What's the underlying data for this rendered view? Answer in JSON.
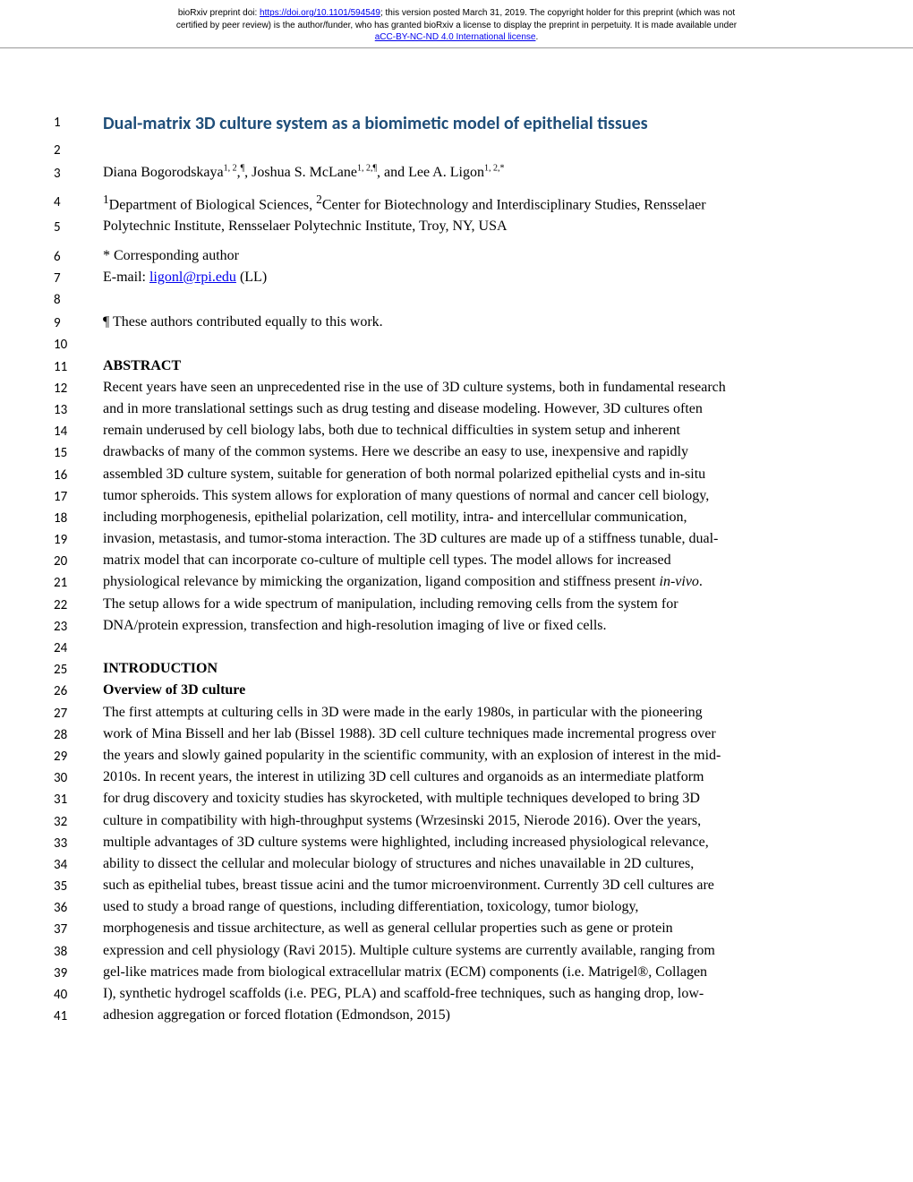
{
  "header": {
    "line1_a": "bioRxiv preprint doi: ",
    "line1_doi": "https://doi.org/10.1101/594549",
    "line1_b": "; this version posted March 31, 2019. The copyright holder for this preprint (which was not",
    "line2": "certified by peer review) is the author/funder, who has granted bioRxiv a license to display the preprint in perpetuity. It is made available under",
    "line3_license": "aCC-BY-NC-ND 4.0 International license",
    "line3_b": "."
  },
  "lines": {
    "1": {
      "cls": "title-text",
      "text": "Dual-matrix 3D culture system as a biomimetic model of epithelial tissues"
    },
    "2": {
      "cls": "blank",
      "text": ""
    },
    "3": {
      "cls": "authors",
      "html": "Diana Bogorodskaya<sup>1, 2</sup>,<sup>¶</sup>, Joshua S. McLane<sup>1, 2,¶</sup>, and Lee A. Ligon<sup>1, 2,*</sup>"
    },
    "4": {
      "html": "<sup>1</sup>Department of Biological Sciences, <sup>2</sup>Center for Biotechnology and Interdisciplinary Studies, Rensselaer"
    },
    "5": {
      "text": "Polytechnic Institute, Rensselaer Polytechnic Institute, Troy, NY, USA",
      "tight": true
    },
    "6": {
      "text": "* Corresponding author",
      "tight": true
    },
    "7": {
      "html": "E-mail: <a class=\"email-link\" href=\"#\">ligonl@rpi.edu</a> (LL)",
      "tight": true
    },
    "8": {
      "cls": "blank",
      "text": ""
    },
    "9": {
      "text": "¶ These authors contributed equally to this work.",
      "tight": true
    },
    "10": {
      "cls": "blank",
      "text": ""
    },
    "11": {
      "cls": "bold",
      "text": "ABSTRACT",
      "tight": true
    },
    "12": {
      "text": "Recent years have seen an unprecedented rise in the use of 3D culture systems, both in fundamental research"
    },
    "13": {
      "text": "and in more translational settings such as drug testing and disease modeling. However, 3D cultures often"
    },
    "14": {
      "text": "remain underused by cell biology labs, both due to technical difficulties in system setup and inherent"
    },
    "15": {
      "text": "drawbacks of many of the common systems. Here we describe an easy to use, inexpensive and rapidly"
    },
    "16": {
      "text": "assembled 3D culture system, suitable for generation of both normal polarized epithelial cysts and in-situ"
    },
    "17": {
      "text": "tumor spheroids. This system allows for exploration of many questions of normal and cancer cell biology,"
    },
    "18": {
      "text": "including morphogenesis, epithelial polarization, cell motility, intra- and intercellular communication,"
    },
    "19": {
      "text": "invasion, metastasis, and tumor-stoma interaction. The 3D cultures are made up of a stiffness tunable, dual-"
    },
    "20": {
      "text": "matrix model that can incorporate co-culture of multiple cell types. The model allows for increased"
    },
    "21": {
      "html": "physiological relevance by mimicking the organization, ligand composition and stiffness present <i>in-vivo</i>."
    },
    "22": {
      "text": "The setup allows for a wide spectrum of manipulation, including removing cells from the system for"
    },
    "23": {
      "text": "DNA/protein expression, transfection and high-resolution imaging of live or fixed cells.",
      "tight": true
    },
    "24": {
      "cls": "blank",
      "text": ""
    },
    "25": {
      "cls": "bold",
      "text": "INTRODUCTION",
      "tight": true
    },
    "26": {
      "cls": "bold",
      "text": "Overview of 3D culture",
      "tight": true
    },
    "27": {
      "text": "The first attempts at culturing cells in 3D were made in the early 1980s, in particular with the pioneering"
    },
    "28": {
      "text": "work of Mina Bissell and her lab (Bissel 1988). 3D cell culture techniques made incremental progress over"
    },
    "29": {
      "text": "the years and slowly gained popularity in the scientific community, with an explosion of interest in the mid-"
    },
    "30": {
      "text": "2010s. In recent years, the interest in utilizing 3D cell cultures and organoids as an intermediate platform"
    },
    "31": {
      "text": "for drug discovery and toxicity studies has skyrocketed, with multiple techniques developed to bring 3D"
    },
    "32": {
      "text": "culture in compatibility with high-throughput systems (Wrzesinski 2015, Nierode 2016). Over the years,"
    },
    "33": {
      "text": "multiple advantages of 3D culture systems were highlighted, including increased physiological relevance,"
    },
    "34": {
      "text": "ability to dissect the cellular and molecular biology of structures and niches unavailable in 2D cultures,"
    },
    "35": {
      "text": "such as epithelial tubes, breast tissue acini and the tumor microenvironment. Currently 3D cell cultures are"
    },
    "36": {
      "text": "used to study a broad range of questions, including differentiation, toxicology, tumor biology,"
    },
    "37": {
      "text": "morphogenesis and tissue architecture, as well as general cellular properties such as gene or protein"
    },
    "38": {
      "text": "expression and cell physiology (Ravi 2015). Multiple culture systems are currently available, ranging from"
    },
    "39": {
      "text": "gel-like matrices made from biological extracellular matrix (ECM) components (i.e. Matrigel®, Collagen"
    },
    "40": {
      "text": "I), synthetic hydrogel scaffolds (i.e. PEG, PLA) and scaffold-free techniques, such as hanging drop, low-"
    },
    "41": {
      "text": "adhesion aggregation or forced flotation (Edmondson, 2015)",
      "tight": true
    }
  }
}
